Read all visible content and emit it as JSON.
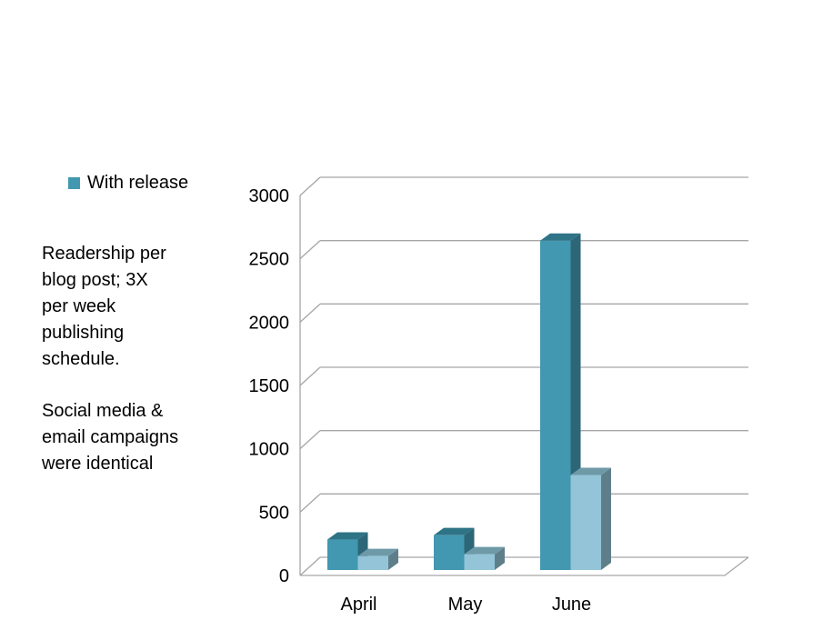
{
  "chart_data": {
    "type": "bar",
    "title": "",
    "xlabel": "",
    "ylabel": "",
    "categories": [
      "April",
      "May",
      "June"
    ],
    "series": [
      {
        "name": "With release",
        "color": "#4198B0",
        "values": [
          240,
          275,
          2600
        ]
      },
      {
        "color": "#93C4D7",
        "values": [
          110,
          125,
          750
        ]
      }
    ],
    "ylim": [
      0,
      3000
    ],
    "yticks": [
      "0",
      "500",
      "1000",
      "1500",
      "2000",
      "2500",
      "3000"
    ],
    "grid": true,
    "legend": "top-left",
    "style": "3d-clustered-column"
  },
  "annotations": {
    "note1": "Readership per\nblog post; 3X\nper week\npublishing\nschedule.",
    "note2": "Social media &\nemail campaigns\nwere identical"
  }
}
